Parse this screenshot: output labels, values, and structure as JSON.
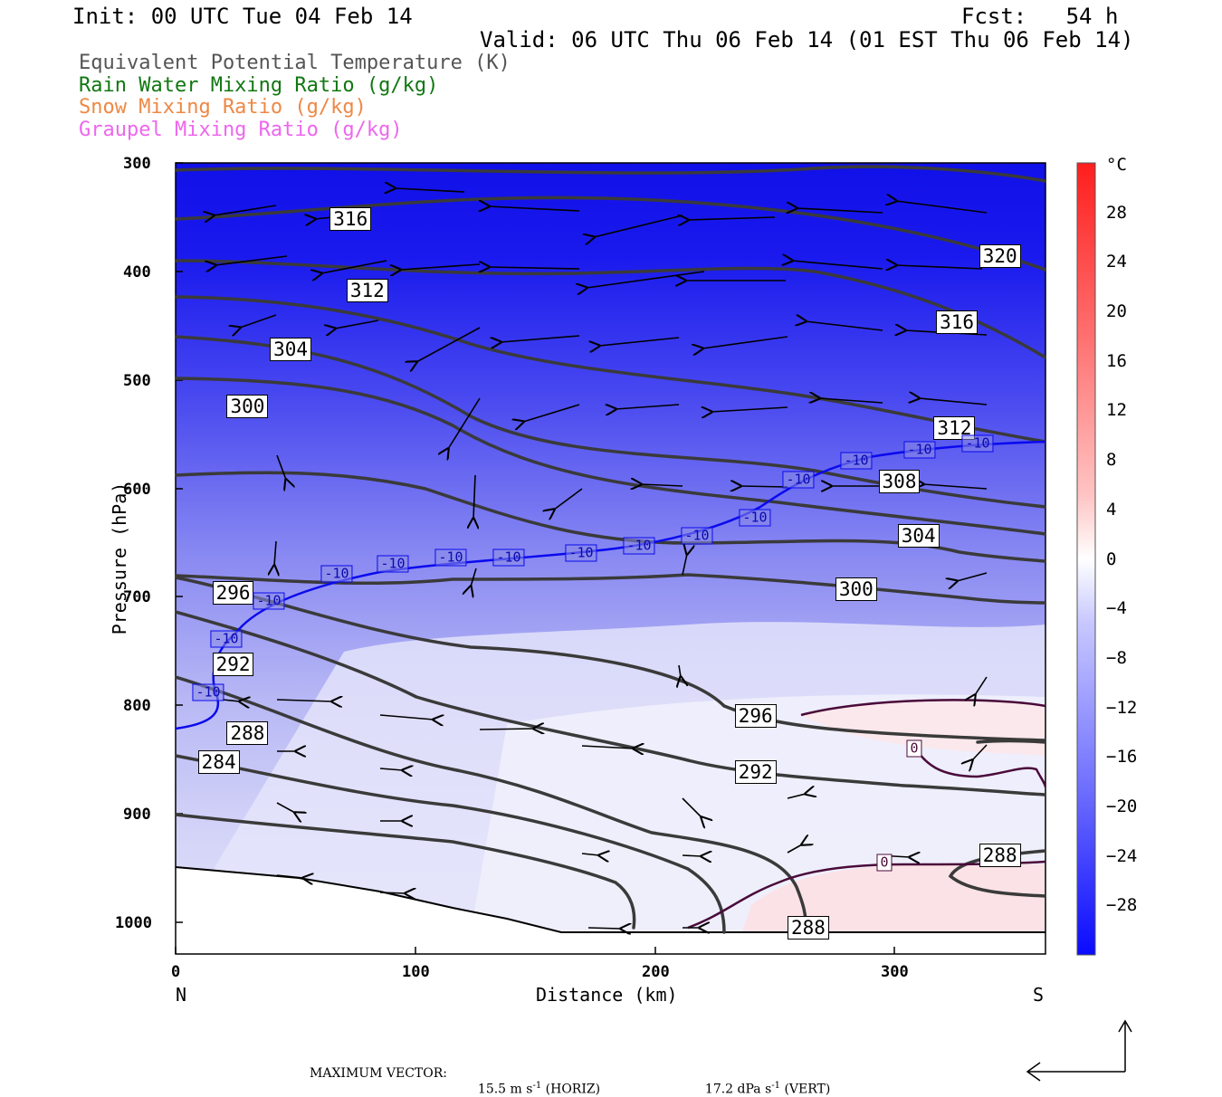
{
  "header": {
    "init": "Init: 00 UTC Tue 04 Feb 14",
    "fcst": "Fcst:   54 h",
    "valid": "Valid: 06 UTC Thu 06 Feb 14 (01 EST Thu 06 Feb 14)"
  },
  "legend": [
    {
      "text": "Equivalent Potential Temperature (K)",
      "color": "#555555"
    },
    {
      "text": "Rain Water Mixing Ratio (g/kg)",
      "color": "#117711"
    },
    {
      "text": "Snow Mixing Ratio (g/kg)",
      "color": "#ee8844"
    },
    {
      "text": "Graupel Mixing Ratio (g/kg)",
      "color": "#ee66ee"
    }
  ],
  "chart_data": {
    "type": "cross-section",
    "xlabel": "Distance (km)",
    "ylabel": "Pressure (hPa)",
    "x_ticks": [
      "0",
      "100",
      "200",
      "300"
    ],
    "y_ticks": [
      "300",
      "400",
      "500",
      "600",
      "700",
      "800",
      "900",
      "1000"
    ],
    "xlim": [
      0,
      363
    ],
    "ylim": [
      1030,
      300
    ],
    "left_end": "N",
    "right_end": "S",
    "theta_e_contours": [
      {
        "level": 316,
        "labels": [
          {
            "x": 73,
            "p": 352
          },
          {
            "x": 326,
            "p": 447
          }
        ]
      },
      {
        "level": 312,
        "labels": [
          {
            "x": 80,
            "p": 418
          },
          {
            "x": 325,
            "p": 545
          }
        ]
      },
      {
        "level": 304,
        "labels": [
          {
            "x": 48,
            "p": 472
          },
          {
            "x": 310,
            "p": 644
          }
        ]
      },
      {
        "level": 300,
        "labels": [
          {
            "x": 30,
            "p": 525
          },
          {
            "x": 284,
            "p": 693
          }
        ]
      },
      {
        "level": 320,
        "labels": [
          {
            "x": 344,
            "p": 386
          }
        ]
      },
      {
        "level": 308,
        "labels": [
          {
            "x": 302,
            "p": 594
          }
        ]
      },
      {
        "level": 296,
        "labels": [
          {
            "x": 24,
            "p": 697
          },
          {
            "x": 242,
            "p": 810
          }
        ]
      },
      {
        "level": 292,
        "labels": [
          {
            "x": 24,
            "p": 763
          },
          {
            "x": 242,
            "p": 862
          }
        ]
      },
      {
        "level": 288,
        "labels": [
          {
            "x": 30,
            "p": 826
          },
          {
            "x": 264,
            "p": 1006
          },
          {
            "x": 344,
            "p": 939
          }
        ]
      },
      {
        "level": 284,
        "labels": [
          {
            "x": 18,
            "p": 853
          }
        ]
      }
    ],
    "isotherm_labels": [
      "-10",
      "0"
    ],
    "colorbar": {
      "unit": "°C",
      "ticks": [
        "28",
        "24",
        "20",
        "16",
        "12",
        "8",
        "4",
        "0",
        "-4",
        "-8",
        "-12",
        "-16",
        "-20",
        "-24",
        "-28"
      ],
      "range": [
        -32,
        32
      ]
    },
    "max_vector": {
      "label": "MAXIMUM VECTOR:",
      "horiz": "15.5 m s",
      "horiz_unit": "(HORIZ)",
      "vert": "17.2 dPa s",
      "vert_unit": "(VERT)",
      "exponent": "-1"
    }
  }
}
